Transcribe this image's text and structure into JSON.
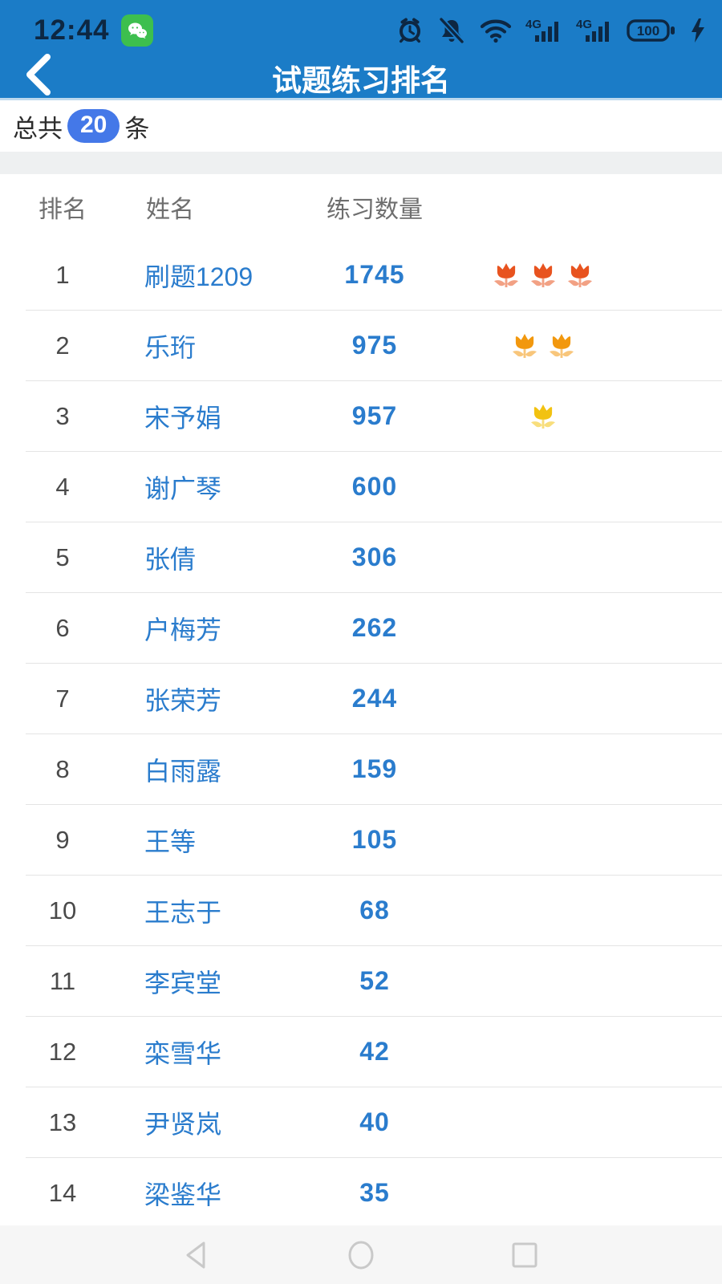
{
  "status_bar": {
    "time": "12:44",
    "network": "4G",
    "battery": "100",
    "icons": [
      "wechat-icon",
      "alarm-icon",
      "mute-icon",
      "wifi-icon",
      "signal-4g-icon",
      "signal-4g-icon",
      "battery-icon",
      "charging-icon"
    ]
  },
  "header": {
    "title": "试题练习排名"
  },
  "summary": {
    "prefix": "总共",
    "count": "20",
    "suffix": "条"
  },
  "table": {
    "columns": [
      "排名",
      "姓名",
      "练习数量"
    ],
    "rows": [
      {
        "rank": "1",
        "name": "刷题1209",
        "count": "1745",
        "flowers": 3,
        "flower_color": "#e8531f"
      },
      {
        "rank": "2",
        "name": "乐珩",
        "count": "975",
        "flowers": 2,
        "flower_color": "#f2980e"
      },
      {
        "rank": "3",
        "name": "宋予娟",
        "count": "957",
        "flowers": 1,
        "flower_color": "#f2c211"
      },
      {
        "rank": "4",
        "name": "谢广琴",
        "count": "600",
        "flowers": 0,
        "flower_color": ""
      },
      {
        "rank": "5",
        "name": "张倩",
        "count": "306",
        "flowers": 0,
        "flower_color": ""
      },
      {
        "rank": "6",
        "name": "户梅芳",
        "count": "262",
        "flowers": 0,
        "flower_color": ""
      },
      {
        "rank": "7",
        "name": "张荣芳",
        "count": "244",
        "flowers": 0,
        "flower_color": ""
      },
      {
        "rank": "8",
        "name": "白雨露",
        "count": "159",
        "flowers": 0,
        "flower_color": ""
      },
      {
        "rank": "9",
        "name": "王等",
        "count": "105",
        "flowers": 0,
        "flower_color": ""
      },
      {
        "rank": "10",
        "name": "王志于",
        "count": "68",
        "flowers": 0,
        "flower_color": ""
      },
      {
        "rank": "11",
        "name": "李宾堂",
        "count": "52",
        "flowers": 0,
        "flower_color": ""
      },
      {
        "rank": "12",
        "name": "栾雪华",
        "count": "42",
        "flowers": 0,
        "flower_color": ""
      },
      {
        "rank": "13",
        "name": "尹贤岚",
        "count": "40",
        "flowers": 0,
        "flower_color": ""
      },
      {
        "rank": "14",
        "name": "梁鉴华",
        "count": "35",
        "flowers": 0,
        "flower_color": ""
      }
    ]
  },
  "nav": {
    "buttons": [
      "back",
      "home",
      "recents"
    ]
  },
  "colors": {
    "appbar_blue": "#1b7cc7",
    "link_blue": "#2a7ccd",
    "pill_blue": "#4478e8",
    "status_icon": "#0d2742",
    "rank_gray": "#4a4a4a",
    "separator": "#e4e4e4",
    "flower_rank1": "#e8531f",
    "flower_rank2": "#f2980e",
    "flower_rank3": "#f2c211"
  }
}
